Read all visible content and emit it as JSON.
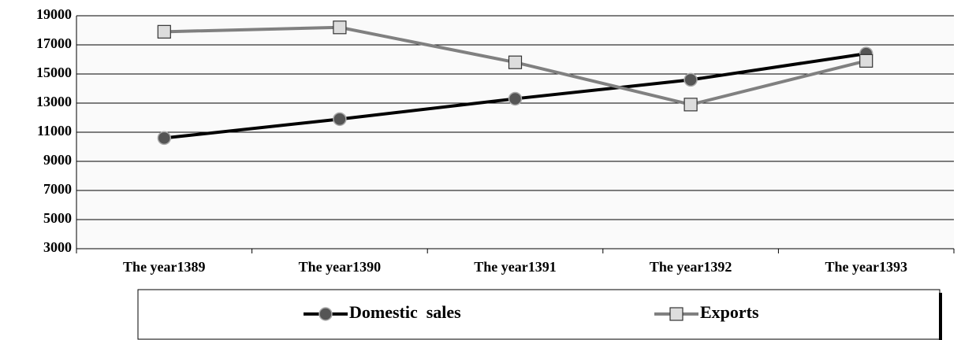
{
  "chart_data": {
    "type": "line",
    "categories": [
      "The year1389",
      "The year1390",
      "The year1391",
      "The year1392",
      "The year1393"
    ],
    "series": [
      {
        "name": "Domestic  sales",
        "color": "#000000",
        "marker": "circle",
        "values": [
          10600,
          11900,
          13300,
          14600,
          16400
        ]
      },
      {
        "name": "Exports",
        "color": "#808080",
        "marker": "square",
        "values": [
          17900,
          18200,
          15800,
          12900,
          15900
        ]
      }
    ],
    "ylim": [
      3000,
      19000
    ],
    "yticks": [
      3000,
      5000,
      7000,
      9000,
      11000,
      13000,
      15000,
      17000,
      19000
    ],
    "grid": true,
    "legend": "bottom"
  }
}
